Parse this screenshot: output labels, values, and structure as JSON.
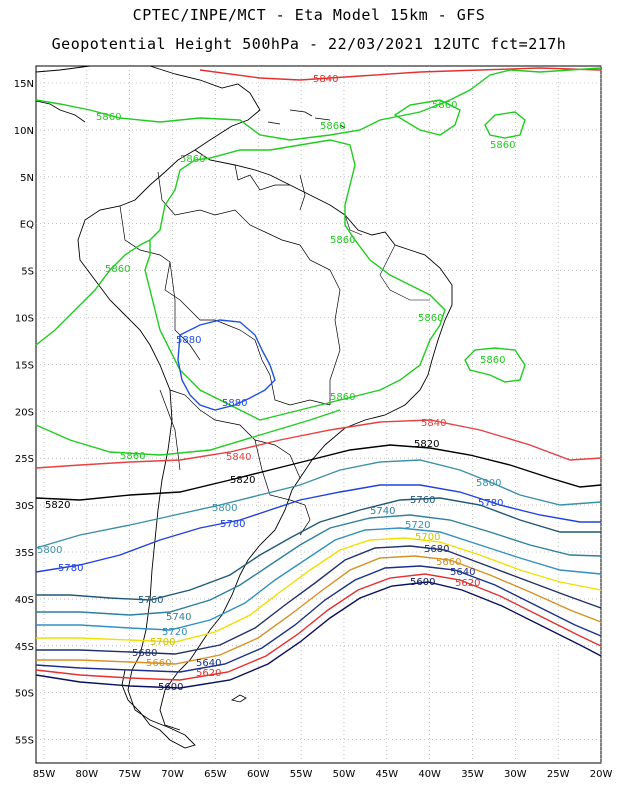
{
  "header": {
    "line1": "CPTEC/INPE/MCT -  Eta Model 15km - GFS",
    "line2": "Geopotential Height 500hPa - 22/03/2021 12UTC fct=217h"
  },
  "axes": {
    "lat_labels": [
      "15N",
      "10N",
      "5N",
      "EQ",
      "5S",
      "10S",
      "15S",
      "20S",
      "25S",
      "30S",
      "35S",
      "40S",
      "45S",
      "50S",
      "55S"
    ],
    "lon_labels": [
      "85W",
      "80W",
      "75W",
      "70W",
      "65W",
      "60W",
      "55W",
      "50W",
      "45W",
      "40W",
      "35W",
      "30W",
      "25W",
      "20W"
    ]
  },
  "colors": {
    "c5600": "#0a1060",
    "c5620": "#e53030",
    "c5640": "#1a2f8a",
    "c5660": "#d59020",
    "c5680": "#20306a",
    "c5700": "#f0e000",
    "c5720": "#3090c0",
    "c5740": "#2f7f9f",
    "c5760": "#205878",
    "c5780": "#2040e0",
    "c5800": "#3b8fa8",
    "c5820": "#000000",
    "c5840": "#e84040",
    "c5860": "#20cc20",
    "c5880": "#2050e0",
    "coast": "#000000"
  },
  "contour_labels": {
    "l5840a": "5840",
    "l5840b": "5840",
    "l5840c": "5840",
    "l5860a": "5860",
    "l5860b": "5860",
    "l5860c": "5860",
    "l5860d": "5860",
    "l5860e": "5860",
    "l5860f": "5860",
    "l5860g": "5860",
    "l5860h": "5860",
    "l5860i": "5860",
    "l5860j": "5860",
    "l5860k": "5860",
    "l5880a": "5880",
    "l5880b": "5880",
    "l5820a": "5820",
    "l5820b": "5820",
    "l5820c": "5820",
    "l5800a": "5800",
    "l5800b": "5800",
    "l5800c": "5800",
    "l5780a": "5780",
    "l5780b": "5780",
    "l5780c": "5780",
    "l5760a": "5760",
    "l5760b": "5760",
    "l5740a": "5740",
    "l5740b": "5740",
    "l5720a": "5720",
    "l5720b": "5720",
    "l5700a": "5700",
    "l5700b": "5700",
    "l5680a": "5680",
    "l5680b": "5680",
    "l5660a": "5660",
    "l5660b": "5660",
    "l5640a": "5640",
    "l5640b": "5640",
    "l5620a": "5620",
    "l5620b": "5620",
    "l5600a": "5600",
    "l5600b": "5600"
  }
}
